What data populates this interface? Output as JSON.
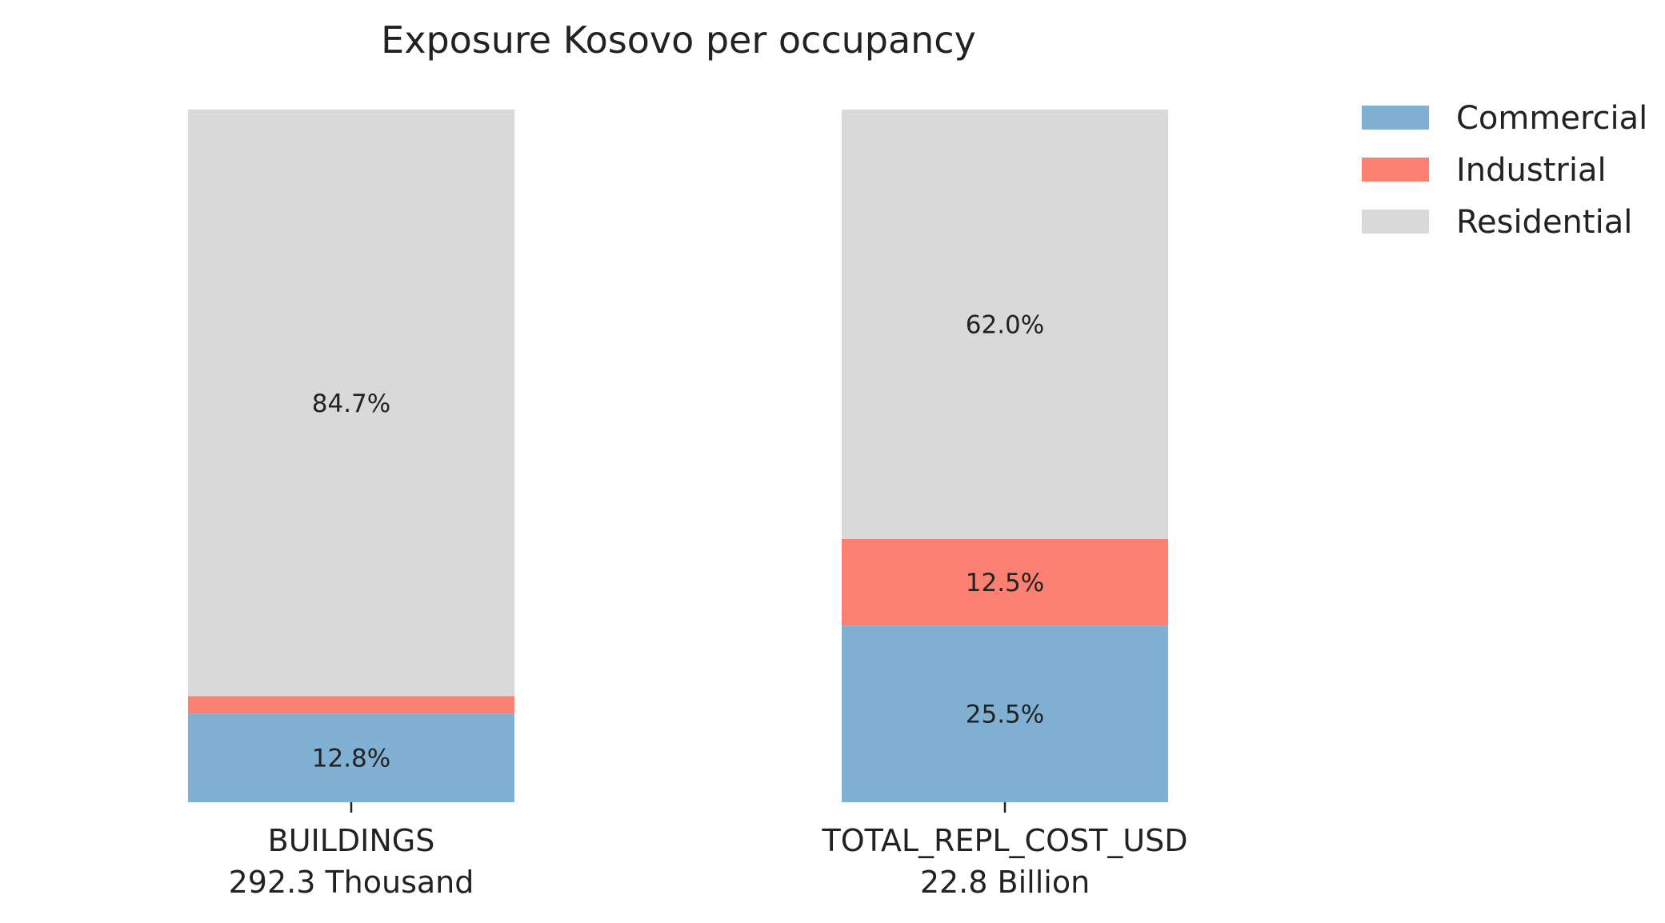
{
  "chart_data": {
    "type": "bar",
    "stacked": true,
    "normalized": true,
    "title": "Exposure Kosovo per occupancy",
    "categories": [
      {
        "name": "BUILDINGS",
        "total": "292.3 Thousand"
      },
      {
        "name": "TOTAL_REPL_COST_USD",
        "total": "22.8 Billion"
      }
    ],
    "series": [
      {
        "name": "Commercial",
        "color": "#80b1d3",
        "values": [
          12.8,
          25.5
        ],
        "labels": [
          "12.8%",
          "25.5%"
        ]
      },
      {
        "name": "Industrial",
        "color": "#fb8072",
        "values": [
          2.5,
          12.5
        ],
        "labels": [
          "",
          "12.5%"
        ]
      },
      {
        "name": "Residential",
        "color": "#d9d9d9",
        "values": [
          84.7,
          62.0
        ],
        "labels": [
          "84.7%",
          "62.0%"
        ]
      }
    ],
    "ylim": [
      0,
      100
    ],
    "grid": false,
    "legend_position": "top-right"
  }
}
